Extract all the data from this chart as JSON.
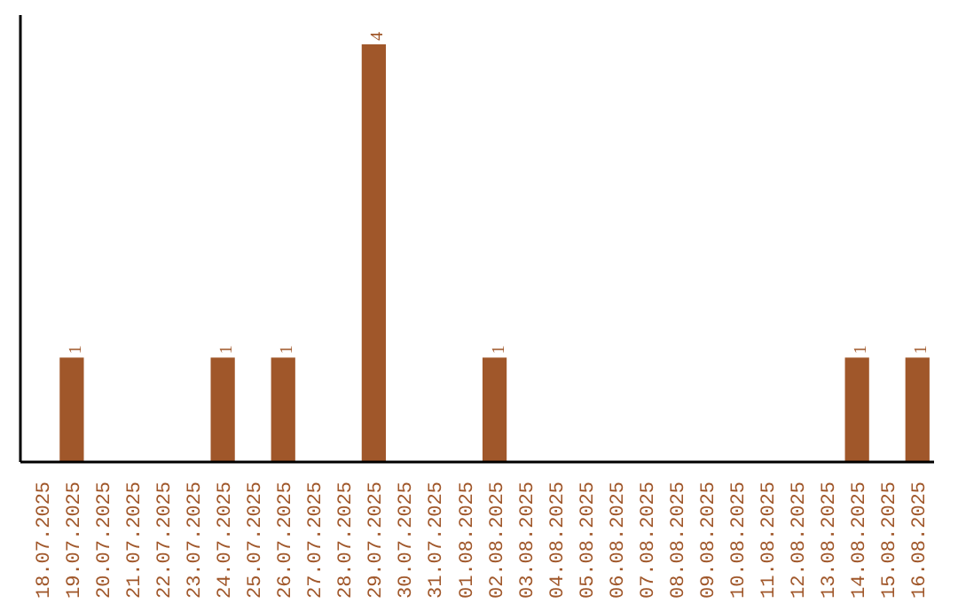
{
  "chart_data": {
    "type": "bar",
    "categories": [
      "18.07.2025",
      "19.07.2025",
      "20.07.2025",
      "21.07.2025",
      "22.07.2025",
      "23.07.2025",
      "24.07.2025",
      "25.07.2025",
      "26.07.2025",
      "27.07.2025",
      "28.07.2025",
      "29.07.2025",
      "30.07.2025",
      "31.07.2025",
      "01.08.2025",
      "02.08.2025",
      "03.08.2025",
      "04.08.2025",
      "05.08.2025",
      "06.08.2025",
      "07.08.2025",
      "08.08.2025",
      "09.08.2025",
      "10.08.2025",
      "11.08.2025",
      "12.08.2025",
      "13.08.2025",
      "14.08.2025",
      "15.08.2025",
      "16.08.2025"
    ],
    "values": [
      0,
      1,
      0,
      0,
      0,
      0,
      1,
      0,
      1,
      0,
      0,
      4,
      0,
      0,
      0,
      1,
      0,
      0,
      0,
      0,
      0,
      0,
      0,
      0,
      0,
      0,
      0,
      1,
      0,
      1
    ],
    "value_labels": [
      null,
      "1",
      null,
      null,
      null,
      null,
      "1",
      null,
      "1",
      null,
      null,
      "4",
      null,
      null,
      null,
      "1",
      null,
      null,
      null,
      null,
      null,
      null,
      null,
      null,
      null,
      null,
      null,
      "1",
      null,
      "1"
    ],
    "color": "#a0572a",
    "grid": false,
    "tick_labels": "x"
  }
}
